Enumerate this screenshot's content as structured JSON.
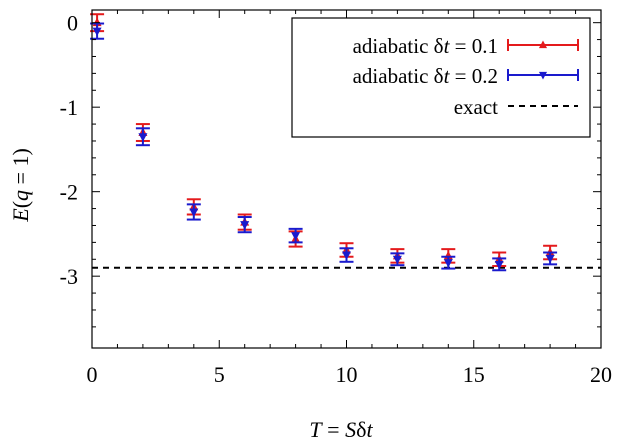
{
  "chart_data": {
    "type": "scatter",
    "xlabel": {
      "T": "T",
      "eq": " = ",
      "S": "S",
      "delta": "δ",
      "t": "t"
    },
    "ylabel": {
      "E": "E",
      "open": "(",
      "q": "q",
      "rest": " = 1)"
    },
    "xlim": [
      0,
      20
    ],
    "ylim": [
      -3.85,
      0.15
    ],
    "x_ticks": [
      0,
      5,
      10,
      15,
      20
    ],
    "x_tick_labels": [
      "0",
      "5",
      "10",
      "15",
      "20"
    ],
    "y_ticks": [
      0,
      -1,
      -2,
      -3
    ],
    "y_tick_labels": [
      "0",
      "-1",
      "-2",
      "-3"
    ],
    "grid": false,
    "legend_position": "top-right",
    "series": [
      {
        "name_parts": {
          "prefix": "adiabatic ",
          "delta": "δ",
          "t": "t",
          "suffix": " = 0.1"
        },
        "color": "#e41a1c",
        "marker": "triangle-up",
        "x": [
          0.2,
          2,
          4,
          6,
          8,
          10,
          12,
          14,
          16,
          18
        ],
        "y": [
          0.0,
          -1.3,
          -2.18,
          -2.36,
          -2.56,
          -2.69,
          -2.76,
          -2.76,
          -2.8,
          -2.72
        ],
        "err": [
          0.1,
          0.1,
          0.09,
          0.09,
          0.09,
          0.08,
          0.08,
          0.08,
          0.08,
          0.08
        ]
      },
      {
        "name_parts": {
          "prefix": "adiabatic ",
          "delta": "δ",
          "t": "t",
          "suffix": " = 0.2"
        },
        "color": "#1a1acd",
        "marker": "triangle-down",
        "x": [
          0.2,
          2,
          4,
          6,
          8,
          10,
          12,
          14,
          16,
          18
        ],
        "y": [
          -0.1,
          -1.35,
          -2.24,
          -2.39,
          -2.52,
          -2.75,
          -2.8,
          -2.84,
          -2.86,
          -2.79
        ],
        "err": [
          0.09,
          0.1,
          0.09,
          0.09,
          0.08,
          0.08,
          0.07,
          0.07,
          0.07,
          0.07
        ]
      },
      {
        "name_parts": {
          "prefix": "exact",
          "delta": "",
          "t": "",
          "suffix": ""
        },
        "color": "#000000",
        "style": "dashed",
        "y_constant": -2.9
      }
    ]
  }
}
